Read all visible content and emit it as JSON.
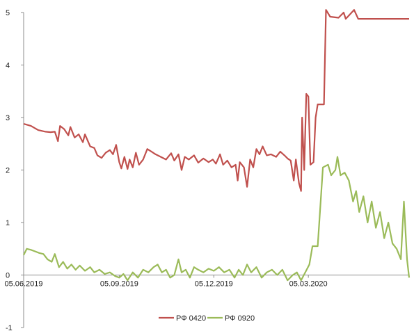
{
  "chart_data": {
    "type": "line",
    "title": "",
    "xlabel": "",
    "ylabel": "",
    "ylim": [
      -1,
      5
    ],
    "y_ticks": [
      "-1",
      "0",
      "1",
      "2",
      "3",
      "4",
      "5"
    ],
    "x_range": [
      "2019-06-05",
      "2020-06-10"
    ],
    "x_ticks": [
      {
        "date": "2019-06-05",
        "label": "05.06.2019"
      },
      {
        "date": "2019-09-05",
        "label": "05.09.2019"
      },
      {
        "date": "2019-12-05",
        "label": "05.12.2019"
      },
      {
        "date": "2020-03-05",
        "label": "05.03.2020"
      }
    ],
    "grid": false,
    "legend_position": "bottom",
    "series": [
      {
        "name": "РФ 0420",
        "color": "#c0504d",
        "points": [
          [
            "2019-06-05",
            2.88
          ],
          [
            "2019-06-12",
            2.84
          ],
          [
            "2019-06-19",
            2.76
          ],
          [
            "2019-06-26",
            2.73
          ],
          [
            "2019-07-01",
            2.72
          ],
          [
            "2019-07-05",
            2.73
          ],
          [
            "2019-07-08",
            2.55
          ],
          [
            "2019-07-10",
            2.84
          ],
          [
            "2019-07-14",
            2.78
          ],
          [
            "2019-07-18",
            2.66
          ],
          [
            "2019-07-20",
            2.82
          ],
          [
            "2019-07-24",
            2.62
          ],
          [
            "2019-07-28",
            2.68
          ],
          [
            "2019-08-01",
            2.53
          ],
          [
            "2019-08-03",
            2.68
          ],
          [
            "2019-08-08",
            2.45
          ],
          [
            "2019-08-12",
            2.42
          ],
          [
            "2019-08-15",
            2.28
          ],
          [
            "2019-08-19",
            2.23
          ],
          [
            "2019-08-23",
            2.33
          ],
          [
            "2019-08-27",
            2.38
          ],
          [
            "2019-08-30",
            2.3
          ],
          [
            "2019-09-02",
            2.48
          ],
          [
            "2019-09-05",
            2.15
          ],
          [
            "2019-09-07",
            2.03
          ],
          [
            "2019-09-10",
            2.25
          ],
          [
            "2019-09-13",
            2.02
          ],
          [
            "2019-09-15",
            2.2
          ],
          [
            "2019-09-18",
            2.05
          ],
          [
            "2019-09-21",
            2.33
          ],
          [
            "2019-09-24",
            2.1
          ],
          [
            "2019-09-28",
            2.2
          ],
          [
            "2019-10-02",
            2.4
          ],
          [
            "2019-10-06",
            2.35
          ],
          [
            "2019-10-10",
            2.3
          ],
          [
            "2019-10-15",
            2.25
          ],
          [
            "2019-10-20",
            2.2
          ],
          [
            "2019-10-25",
            2.32
          ],
          [
            "2019-10-28",
            2.18
          ],
          [
            "2019-11-01",
            2.3
          ],
          [
            "2019-11-04",
            2.0
          ],
          [
            "2019-11-07",
            2.25
          ],
          [
            "2019-11-11",
            2.2
          ],
          [
            "2019-11-16",
            2.28
          ],
          [
            "2019-11-20",
            2.14
          ],
          [
            "2019-11-25",
            2.22
          ],
          [
            "2019-11-30",
            2.15
          ],
          [
            "2019-12-04",
            2.2
          ],
          [
            "2019-12-07",
            2.12
          ],
          [
            "2019-12-11",
            2.3
          ],
          [
            "2019-12-14",
            2.1
          ],
          [
            "2019-12-18",
            2.18
          ],
          [
            "2019-12-22",
            2.05
          ],
          [
            "2019-12-26",
            2.1
          ],
          [
            "2019-12-28",
            1.8
          ],
          [
            "2019-12-30",
            2.15
          ],
          [
            "2020-01-03",
            2.05
          ],
          [
            "2020-01-06",
            1.68
          ],
          [
            "2020-01-09",
            2.2
          ],
          [
            "2020-01-12",
            2.05
          ],
          [
            "2020-01-15",
            2.4
          ],
          [
            "2020-01-18",
            2.3
          ],
          [
            "2020-01-21",
            2.45
          ],
          [
            "2020-01-25",
            2.28
          ],
          [
            "2020-01-29",
            2.3
          ],
          [
            "2020-02-03",
            2.25
          ],
          [
            "2020-02-07",
            2.35
          ],
          [
            "2020-02-11",
            2.28
          ],
          [
            "2020-02-14",
            2.22
          ],
          [
            "2020-02-17",
            2.18
          ],
          [
            "2020-02-20",
            1.8
          ],
          [
            "2020-02-22",
            2.2
          ],
          [
            "2020-02-25",
            1.75
          ],
          [
            "2020-02-27",
            1.6
          ],
          [
            "2020-02-28",
            3.0
          ],
          [
            "2020-03-01",
            2.0
          ],
          [
            "2020-03-03",
            3.45
          ],
          [
            "2020-03-05",
            3.4
          ],
          [
            "2020-03-07",
            2.1
          ],
          [
            "2020-03-10",
            2.15
          ],
          [
            "2020-03-12",
            3.0
          ],
          [
            "2020-03-14",
            3.25
          ],
          [
            "2020-03-20",
            3.25
          ],
          [
            "2020-03-22",
            5.05
          ],
          [
            "2020-03-26",
            4.92
          ],
          [
            "2020-04-03",
            4.9
          ],
          [
            "2020-04-08",
            5.0
          ],
          [
            "2020-04-10",
            4.88
          ],
          [
            "2020-04-18",
            5.05
          ],
          [
            "2020-04-22",
            4.88
          ],
          [
            "2020-06-10",
            4.88
          ]
        ]
      },
      {
        "name": "РФ 0920",
        "color": "#9bbb59",
        "points": [
          [
            "2019-06-05",
            0.38
          ],
          [
            "2019-06-08",
            0.5
          ],
          [
            "2019-06-12",
            0.48
          ],
          [
            "2019-06-16",
            0.45
          ],
          [
            "2019-06-20",
            0.42
          ],
          [
            "2019-06-24",
            0.4
          ],
          [
            "2019-06-28",
            0.3
          ],
          [
            "2019-07-02",
            0.25
          ],
          [
            "2019-07-05",
            0.4
          ],
          [
            "2019-07-09",
            0.15
          ],
          [
            "2019-07-13",
            0.25
          ],
          [
            "2019-07-17",
            0.12
          ],
          [
            "2019-07-21",
            0.2
          ],
          [
            "2019-07-25",
            0.1
          ],
          [
            "2019-07-29",
            0.18
          ],
          [
            "2019-08-03",
            0.08
          ],
          [
            "2019-08-08",
            0.15
          ],
          [
            "2019-08-12",
            0.05
          ],
          [
            "2019-08-17",
            0.1
          ],
          [
            "2019-08-22",
            0.02
          ],
          [
            "2019-08-27",
            0.05
          ],
          [
            "2019-09-01",
            -0.02
          ],
          [
            "2019-09-05",
            -0.05
          ],
          [
            "2019-09-09",
            0.02
          ],
          [
            "2019-09-13",
            -0.1
          ],
          [
            "2019-09-18",
            0.05
          ],
          [
            "2019-09-23",
            -0.05
          ],
          [
            "2019-09-28",
            0.1
          ],
          [
            "2019-10-03",
            0.05
          ],
          [
            "2019-10-08",
            0.15
          ],
          [
            "2019-10-12",
            0.2
          ],
          [
            "2019-10-16",
            0.05
          ],
          [
            "2019-10-20",
            0.1
          ],
          [
            "2019-10-24",
            -0.05
          ],
          [
            "2019-10-28",
            0.0
          ],
          [
            "2019-11-01",
            0.3
          ],
          [
            "2019-11-04",
            0.05
          ],
          [
            "2019-11-08",
            0.1
          ],
          [
            "2019-11-12",
            -0.05
          ],
          [
            "2019-11-16",
            0.15
          ],
          [
            "2019-11-20",
            0.1
          ],
          [
            "2019-11-25",
            0.05
          ],
          [
            "2019-11-30",
            0.12
          ],
          [
            "2019-12-05",
            0.08
          ],
          [
            "2019-12-10",
            0.15
          ],
          [
            "2019-12-15",
            0.05
          ],
          [
            "2019-12-20",
            0.1
          ],
          [
            "2019-12-25",
            -0.05
          ],
          [
            "2019-12-29",
            0.1
          ],
          [
            "2020-01-02",
            0.0
          ],
          [
            "2020-01-06",
            0.2
          ],
          [
            "2020-01-10",
            0.05
          ],
          [
            "2020-01-15",
            0.15
          ],
          [
            "2020-01-20",
            -0.05
          ],
          [
            "2020-01-25",
            0.05
          ],
          [
            "2020-01-30",
            0.1
          ],
          [
            "2020-02-04",
            0.0
          ],
          [
            "2020-02-09",
            0.1
          ],
          [
            "2020-02-14",
            -0.1
          ],
          [
            "2020-02-19",
            0.0
          ],
          [
            "2020-02-23",
            0.05
          ],
          [
            "2020-02-27",
            -0.1
          ],
          [
            "2020-03-02",
            0.05
          ],
          [
            "2020-03-06",
            0.2
          ],
          [
            "2020-03-09",
            0.55
          ],
          [
            "2020-03-14",
            0.55
          ],
          [
            "2020-03-19",
            2.05
          ],
          [
            "2020-03-24",
            2.1
          ],
          [
            "2020-03-27",
            1.9
          ],
          [
            "2020-03-31",
            2.0
          ],
          [
            "2020-04-02",
            2.25
          ],
          [
            "2020-04-05",
            1.9
          ],
          [
            "2020-04-09",
            1.95
          ],
          [
            "2020-04-13",
            1.8
          ],
          [
            "2020-04-17",
            1.4
          ],
          [
            "2020-04-20",
            1.6
          ],
          [
            "2020-04-23",
            1.2
          ],
          [
            "2020-04-27",
            1.5
          ],
          [
            "2020-05-01",
            1.0
          ],
          [
            "2020-05-05",
            1.4
          ],
          [
            "2020-05-09",
            0.9
          ],
          [
            "2020-05-13",
            1.2
          ],
          [
            "2020-05-17",
            0.7
          ],
          [
            "2020-05-21",
            1.0
          ],
          [
            "2020-05-25",
            0.6
          ],
          [
            "2020-05-29",
            0.5
          ],
          [
            "2020-06-02",
            0.3
          ],
          [
            "2020-06-05",
            1.4
          ],
          [
            "2020-06-08",
            0.3
          ],
          [
            "2020-06-10",
            -0.05
          ]
        ]
      }
    ]
  }
}
